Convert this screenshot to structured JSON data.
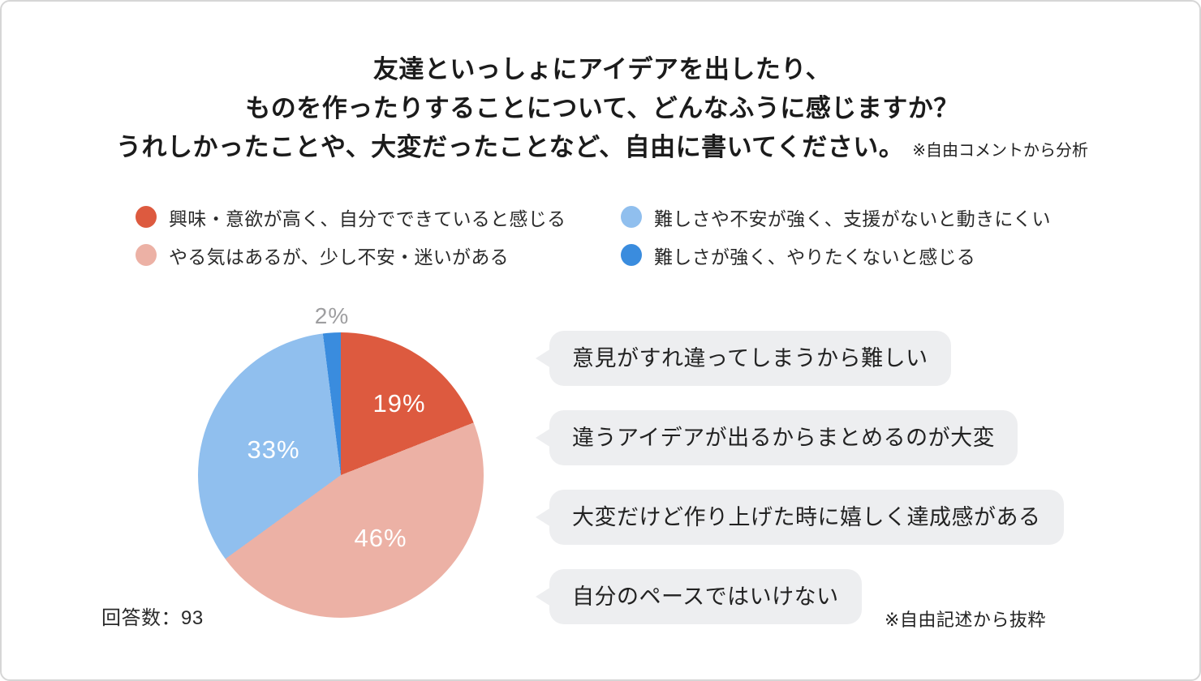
{
  "title": {
    "lines": [
      "友達といっしょにアイデアを出したり、",
      "ものを作ったりすることについて、どんなふうに感じますか？",
      "うれしかったことや、大変だったことなど、自由に書いてください。"
    ],
    "note": "※自由コメントから分析"
  },
  "legend": {
    "items": [
      {
        "label": "興味・意欲が高く、自分でできていると感じる",
        "color": "#dd5a3f"
      },
      {
        "label": "やる気はあるが、少し不安・迷いがある",
        "color": "#ecb1a5"
      },
      {
        "label": "難しさや不安が強く、支援がないと動きにくい",
        "color": "#90bfee"
      },
      {
        "label": "難しさが強く、やりたくないと感じる",
        "color": "#3a8cde"
      }
    ]
  },
  "chart_data": {
    "type": "pie",
    "title": "友達といっしょにアイデアを出したり、ものを作ったりすることについて、どんなふうに感じますか？ うれしかったことや、大変だったことなど、自由に書いてください。（※自由コメントから分析）",
    "categories": [
      "興味・意欲が高く、自分でできていると感じる",
      "やる気はあるが、少し不安・迷いがある",
      "難しさや不安が強く、支援がないと動きにくい",
      "難しさが強く、やりたくないと感じる"
    ],
    "values": [
      19,
      46,
      33,
      2
    ],
    "colors": [
      "#dd5a3f",
      "#ecb1a5",
      "#90bfee",
      "#3a8cde"
    ],
    "slice_labels": [
      "19%",
      "46%",
      "33%",
      "2%"
    ],
    "start_angle_deg": 0,
    "direction": "clockwise",
    "legend_position": "top",
    "respondents": 93
  },
  "comments": {
    "bubbles": [
      "意見がすれ違ってしまうから難しい",
      "違うアイデアが出るからまとめるのが大変",
      "大変だけど作り上げた時に嬉しく達成感がある",
      "自分のペースではいけない"
    ],
    "note": "※自由記述から抜粋"
  },
  "footer": {
    "respondents_label": "回答数：93"
  }
}
